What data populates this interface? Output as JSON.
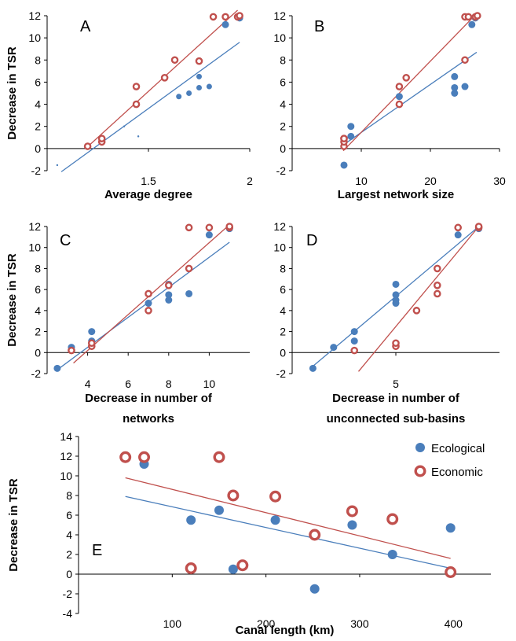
{
  "colors": {
    "ecological": "#4a7ebb",
    "economic": "#c0504d",
    "axis": "#000000"
  },
  "legend": {
    "ecological": "Ecological",
    "economic": "Economic"
  },
  "chart_data": [
    {
      "panel": "A",
      "type": "scatter",
      "xlabel": "Average degree",
      "ylabel": "Decrease in TSR",
      "xlim": [
        1.0,
        2.0
      ],
      "ylim": [
        -2,
        12
      ],
      "xticks": [
        1.5,
        2
      ],
      "xtick_labels": [
        "1.5",
        "2"
      ],
      "yticks": [
        -2,
        0,
        2,
        4,
        6,
        8,
        10,
        12
      ],
      "series": [
        {
          "key": "ecological",
          "x": [
            1.05,
            1.38,
            1.45,
            1.65,
            1.7,
            1.75,
            1.8,
            1.75,
            1.88,
            1.95
          ],
          "y": [
            -1.5,
            2.0,
            1.1,
            4.7,
            5.0,
            5.5,
            5.6,
            6.5,
            11.2,
            11.8
          ],
          "sizes": [
            1,
            1,
            1,
            2,
            2,
            2,
            2,
            2,
            3,
            3
          ],
          "fit": [
            [
              1.07,
              -2.1
            ],
            [
              1.95,
              9.6
            ]
          ]
        },
        {
          "key": "economic",
          "x": [
            1.2,
            1.27,
            1.27,
            1.44,
            1.44,
            1.58,
            1.63,
            1.75,
            1.82,
            1.88,
            1.94,
            1.95
          ],
          "y": [
            0.2,
            0.6,
            0.9,
            4.0,
            5.6,
            6.4,
            8.0,
            7.9,
            11.9,
            11.9,
            11.9,
            12.0
          ],
          "fit": [
            [
              1.19,
              0.0
            ],
            [
              1.94,
              12.5
            ]
          ]
        }
      ]
    },
    {
      "panel": "B",
      "type": "scatter",
      "xlabel": "Largest network size",
      "ylabel": "",
      "xlim": [
        0,
        30
      ],
      "ylim": [
        -2,
        12
      ],
      "xticks": [
        10,
        20,
        30
      ],
      "xtick_labels": [
        "10",
        "20",
        "30"
      ],
      "yticks": [
        -2,
        0,
        2,
        4,
        6,
        8,
        10,
        12
      ],
      "series": [
        {
          "key": "ecological",
          "x": [
            7.5,
            8.5,
            8.5,
            15.5,
            23.5,
            23.5,
            23.5,
            25,
            26,
            26.5
          ],
          "y": [
            -1.5,
            1.1,
            2.0,
            4.7,
            5.0,
            5.5,
            6.5,
            5.6,
            11.2,
            11.8
          ],
          "fit": [
            [
              7.8,
              0.5
            ],
            [
              26.7,
              8.7
            ]
          ]
        },
        {
          "key": "economic",
          "x": [
            7.5,
            7.5,
            7.5,
            7.5,
            15.5,
            15.5,
            16.5,
            25,
            25,
            25.5,
            26.5,
            26.8
          ],
          "y": [
            0.2,
            0.6,
            0.9,
            0.9,
            4.0,
            5.6,
            6.4,
            8.0,
            11.9,
            11.9,
            11.9,
            12.0
          ],
          "fit": [
            [
              7.4,
              -0.2
            ],
            [
              26.7,
              12.2
            ]
          ]
        }
      ]
    },
    {
      "panel": "C",
      "type": "scatter",
      "xlabel": "Decrease in number of networks",
      "xlabel_lines": [
        "Decrease in number of",
        "networks"
      ],
      "ylabel": "Decrease in TSR",
      "xlim": [
        2,
        12
      ],
      "ylim": [
        -2,
        12
      ],
      "xticks": [
        4,
        6,
        8,
        10
      ],
      "xtick_labels": [
        "4",
        "6",
        "8",
        "10"
      ],
      "yticks": [
        -2,
        0,
        2,
        4,
        6,
        8,
        10,
        12
      ],
      "series": [
        {
          "key": "ecological",
          "x": [
            2.5,
            3.2,
            4.2,
            4.2,
            7,
            8,
            8,
            8,
            9,
            10,
            11
          ],
          "y": [
            -1.5,
            0.5,
            2.0,
            1.1,
            4.7,
            5.0,
            5.5,
            6.5,
            5.6,
            11.2,
            11.8
          ],
          "fit": [
            [
              2.6,
              -1.5
            ],
            [
              11.0,
              10.5
            ]
          ]
        },
        {
          "key": "economic",
          "x": [
            3.2,
            4.2,
            4.2,
            7,
            7,
            8,
            9,
            9,
            10,
            11,
            11
          ],
          "y": [
            0.2,
            0.6,
            0.9,
            4.0,
            5.6,
            6.4,
            8.0,
            11.9,
            11.9,
            11.9,
            12.0
          ],
          "fit": [
            [
              3.3,
              -1.0
            ],
            [
              10.9,
              12.0
            ]
          ]
        }
      ]
    },
    {
      "panel": "D",
      "type": "scatter",
      "xlabel": "Decrease in number of unconnected sub-basins",
      "xlabel_lines": [
        "Decrease in number of",
        "unconnected sub-basins"
      ],
      "ylabel": "",
      "xlim": [
        0,
        10
      ],
      "ylim": [
        -2,
        12
      ],
      "xticks": [
        5
      ],
      "xtick_labels": [
        "5"
      ],
      "yticks": [
        -2,
        0,
        2,
        4,
        6,
        8,
        10,
        12
      ],
      "series": [
        {
          "key": "ecological",
          "x": [
            1,
            2,
            3,
            3,
            5,
            5,
            5,
            5,
            7,
            8,
            9
          ],
          "y": [
            -1.5,
            0.5,
            2.0,
            1.1,
            4.7,
            5.0,
            5.5,
            6.5,
            5.6,
            11.2,
            11.8
          ],
          "fit": [
            [
              1.0,
              -1.3
            ],
            [
              9.0,
              12.0
            ]
          ]
        },
        {
          "key": "economic",
          "x": [
            3,
            5,
            5,
            6,
            7,
            7,
            7,
            8,
            9,
            9
          ],
          "y": [
            0.2,
            0.6,
            0.9,
            4.0,
            5.6,
            6.4,
            8.0,
            11.9,
            11.9,
            12.0
          ],
          "fit": [
            [
              3.2,
              -1.8
            ],
            [
              9.0,
              12.0
            ]
          ]
        }
      ]
    },
    {
      "panel": "E",
      "type": "scatter",
      "xlabel": "Canal length (km)",
      "ylabel": "Decrease in TSR",
      "xlim": [
        0,
        440
      ],
      "ylim": [
        -4,
        14
      ],
      "xticks": [
        100,
        200,
        300,
        400
      ],
      "xtick_labels": [
        "100",
        "200",
        "300",
        "400"
      ],
      "yticks": [
        -4,
        -2,
        0,
        2,
        4,
        6,
        8,
        10,
        12,
        14
      ],
      "series": [
        {
          "key": "ecological",
          "x": [
            50,
            70,
            120,
            150,
            165,
            175,
            210,
            252,
            292,
            335,
            397
          ],
          "y": [
            11.9,
            11.2,
            5.5,
            6.5,
            0.5,
            1.0,
            5.5,
            -1.5,
            5.0,
            2.0,
            4.7
          ],
          "fit": [
            [
              50,
              7.9
            ],
            [
              397,
              0.6
            ]
          ]
        },
        {
          "key": "economic",
          "x": [
            50,
            70,
            120,
            150,
            165,
            175,
            210,
            252,
            292,
            335,
            397
          ],
          "y": [
            11.9,
            11.9,
            0.6,
            11.9,
            8.0,
            0.9,
            7.9,
            4.0,
            6.4,
            5.6,
            0.2
          ],
          "fit": [
            [
              50,
              9.8
            ],
            [
              397,
              1.6
            ]
          ]
        }
      ]
    }
  ]
}
